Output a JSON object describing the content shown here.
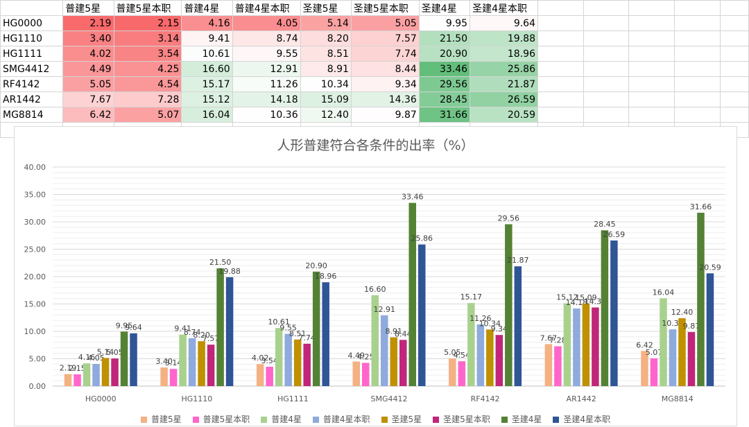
{
  "sheet": {
    "headers": [
      "",
      "普建5星",
      "普建5星本职",
      "普建4星",
      "普建4星本职",
      "圣建5星",
      "圣建5星本职",
      "圣建4星",
      "圣建4星本职"
    ]
  },
  "chart_data": {
    "type": "bar",
    "title": "人形普建符合各条件的出率（%）",
    "categories": [
      "HG0000",
      "HG1110",
      "HG1111",
      "SMG4412",
      "RF4142",
      "AR1442",
      "MG8814"
    ],
    "series": [
      {
        "name": "普建5星",
        "color": "#f4b183",
        "values": [
          2.19,
          3.4,
          4.02,
          4.49,
          5.05,
          7.67,
          6.42
        ]
      },
      {
        "name": "普建5星本职",
        "color": "#ff66cc",
        "values": [
          2.15,
          3.14,
          3.54,
          4.25,
          4.54,
          7.28,
          5.07
        ]
      },
      {
        "name": "普建4星",
        "color": "#a9d18e",
        "values": [
          4.16,
          9.41,
          10.61,
          16.6,
          15.17,
          15.12,
          16.04
        ]
      },
      {
        "name": "普建4星本职",
        "color": "#8faadc",
        "values": [
          4.05,
          8.74,
          9.55,
          12.91,
          11.26,
          14.18,
          10.36
        ]
      },
      {
        "name": "圣建5星",
        "color": "#bf9000",
        "values": [
          5.14,
          8.2,
          8.51,
          8.91,
          10.34,
          15.09,
          12.4
        ]
      },
      {
        "name": "圣建5星本职",
        "color": "#c0267a",
        "values": [
          5.05,
          7.57,
          7.74,
          8.44,
          9.34,
          14.36,
          9.87
        ]
      },
      {
        "name": "圣建4星",
        "color": "#548235",
        "values": [
          9.95,
          21.5,
          20.9,
          33.46,
          29.56,
          28.45,
          31.66
        ]
      },
      {
        "name": "圣建4星本职",
        "color": "#2f5597",
        "values": [
          9.64,
          19.88,
          18.96,
          25.86,
          21.87,
          26.59,
          20.59
        ]
      }
    ],
    "ylim": [
      0,
      40
    ],
    "yticks": [
      "0.00",
      "5.00",
      "10.00",
      "15.00",
      "20.00",
      "25.00",
      "30.00",
      "35.00",
      "40.00"
    ],
    "grid": true,
    "legend": "bottom"
  }
}
